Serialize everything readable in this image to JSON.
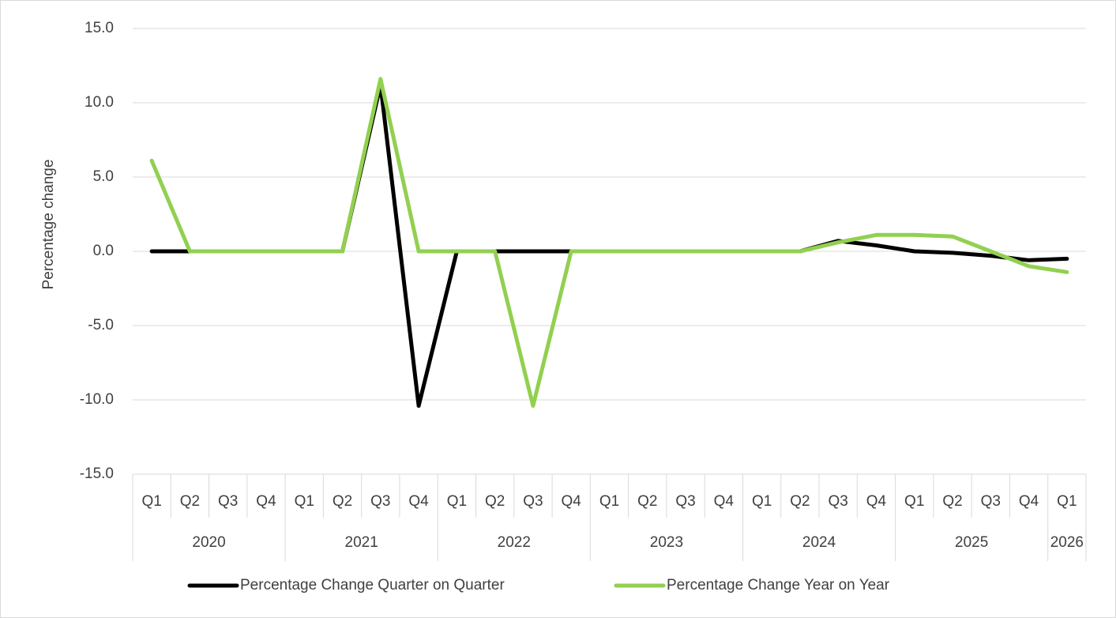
{
  "chart_data": {
    "type": "line",
    "y_label": "Percentage change",
    "category_groups": [
      {
        "label": "2020",
        "categories": [
          "Q1",
          "Q2",
          "Q3",
          "Q4"
        ]
      },
      {
        "label": "2021",
        "categories": [
          "Q1",
          "Q2",
          "Q3",
          "Q4"
        ]
      },
      {
        "label": "2022",
        "categories": [
          "Q1",
          "Q2",
          "Q3",
          "Q4"
        ]
      },
      {
        "label": "2023",
        "categories": [
          "Q1",
          "Q2",
          "Q3",
          "Q4"
        ]
      },
      {
        "label": "2024",
        "categories": [
          "Q1",
          "Q2",
          "Q3",
          "Q4"
        ]
      },
      {
        "label": "2025",
        "categories": [
          "Q1",
          "Q2",
          "Q3",
          "Q4"
        ]
      },
      {
        "label": "2026",
        "categories": [
          "Q1"
        ]
      }
    ],
    "series": [
      {
        "name": "Percentage Change Quarter on Quarter",
        "color": "#000000",
        "values": [
          0,
          0,
          0,
          0,
          0,
          0,
          11.2,
          -10.4,
          0,
          0,
          0,
          0,
          0,
          0,
          0,
          0,
          0,
          0,
          0.7,
          0.4,
          0,
          -0.1,
          -0.3,
          -0.6,
          -0.5
        ]
      },
      {
        "name": "Percentage Change Year on Year",
        "color": "#92d050",
        "values": [
          6.1,
          0,
          0,
          0,
          0,
          0,
          11.6,
          0,
          0,
          0,
          -10.4,
          0,
          0,
          0,
          0,
          0,
          0,
          0,
          0.6,
          1.1,
          1.1,
          1.0,
          0.0,
          -1.0,
          -1.4
        ]
      }
    ],
    "ylim": [
      -15,
      15
    ],
    "yticks": [
      {
        "value": -15,
        "label": "-15.0"
      },
      {
        "value": -10,
        "label": "-10.0"
      },
      {
        "value": -5,
        "label": "-5.0"
      },
      {
        "value": 0,
        "label": "0.0"
      },
      {
        "value": 5,
        "label": "5.0"
      },
      {
        "value": 10,
        "label": "10.0"
      },
      {
        "value": 15,
        "label": "15.0"
      }
    ],
    "grid": true,
    "legend": "bottom"
  }
}
